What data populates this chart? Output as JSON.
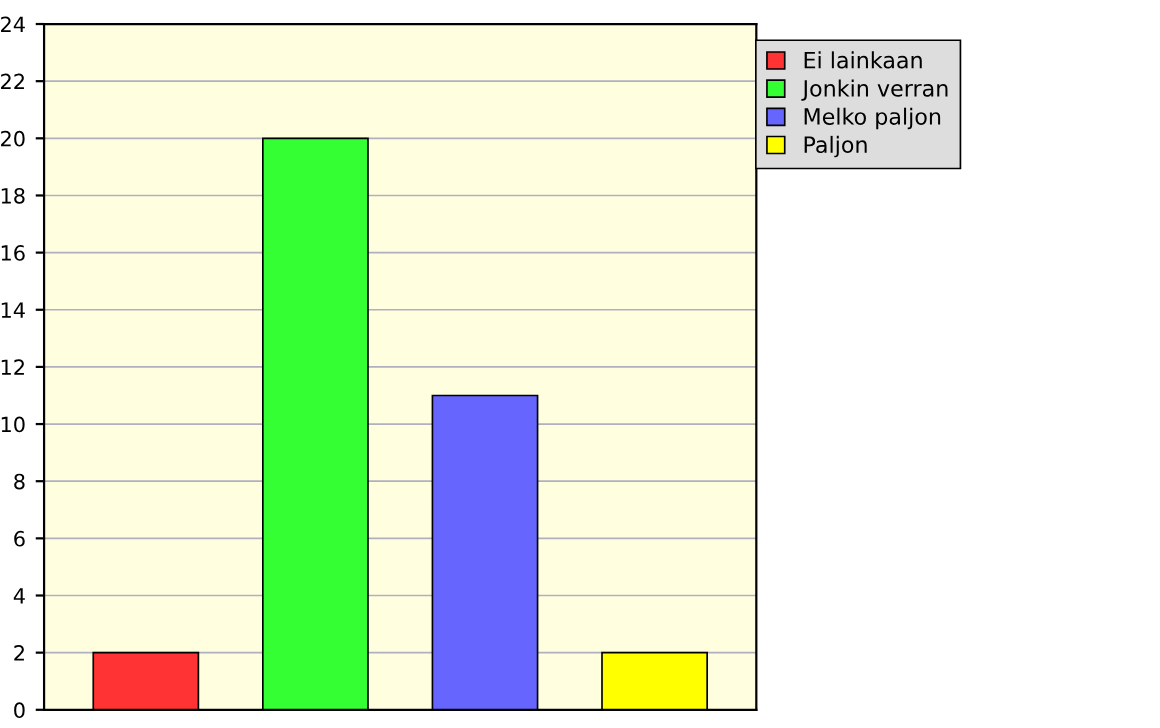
{
  "chart_data": {
    "type": "bar",
    "categories": [
      null,
      null,
      null,
      null
    ],
    "series": [
      {
        "name": "Ei lainkaan",
        "color": "#ff3333",
        "values": [
          2,
          null,
          null,
          null
        ]
      },
      {
        "name": "Jonkin verran",
        "color": "#33ff33",
        "values": [
          null,
          20,
          null,
          null
        ]
      },
      {
        "name": "Melko paljon",
        "color": "#6666ff",
        "values": [
          null,
          null,
          11,
          null
        ]
      },
      {
        "name": "Paljon",
        "color": "#ffff00",
        "values": [
          null,
          null,
          null,
          2
        ]
      }
    ],
    "ylim": [
      0,
      24
    ],
    "yticks": [
      0,
      2,
      4,
      6,
      8,
      10,
      12,
      14,
      16,
      18,
      20,
      22,
      24
    ],
    "grid": "y",
    "legend": "right",
    "tick_labels": "y"
  }
}
